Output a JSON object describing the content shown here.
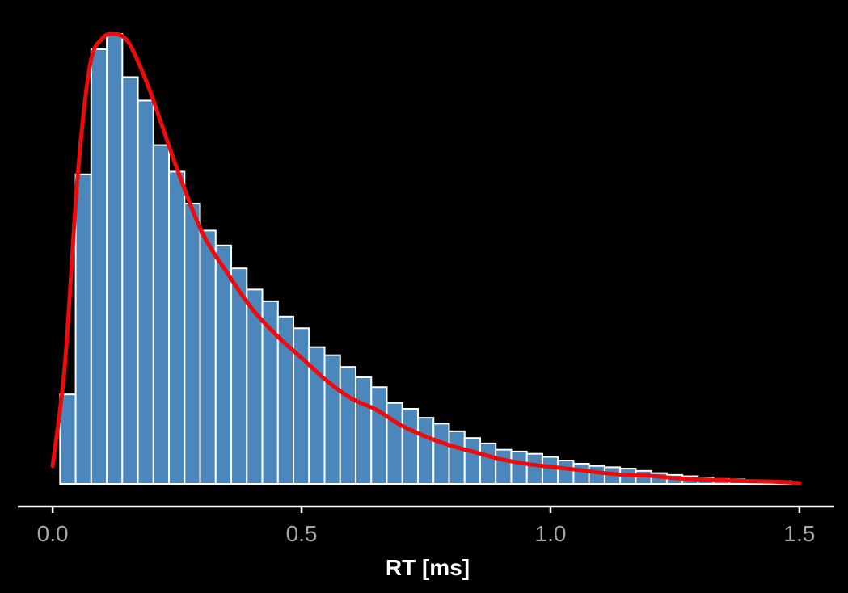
{
  "chart_data": {
    "type": "bar",
    "subtype": "histogram-with-density",
    "title": "",
    "xlabel": "RT [ms]",
    "ylabel": "",
    "xlim": [
      -0.07,
      1.57
    ],
    "ylim": [
      0,
      1.06
    ],
    "x_ticks": [
      0.0,
      0.5,
      1.0,
      1.5
    ],
    "x_tick_labels": [
      "0.0",
      "0.5",
      "1.0",
      "1.5"
    ],
    "y_axis_visible": false,
    "grid": false,
    "legend": "none",
    "bin_width": 0.03125,
    "bins_start": 0.015,
    "bar_color": "#4b87bb",
    "bar_edge_color": "#ffffff",
    "density_color": "#ee0b0b",
    "background_color": "#000000",
    "bars": [
      0.199,
      0.688,
      0.966,
      1.0,
      0.904,
      0.852,
      0.753,
      0.694,
      0.623,
      0.563,
      0.53,
      0.479,
      0.432,
      0.406,
      0.372,
      0.346,
      0.304,
      0.286,
      0.26,
      0.237,
      0.215,
      0.18,
      0.167,
      0.147,
      0.134,
      0.117,
      0.102,
      0.09,
      0.076,
      0.072,
      0.067,
      0.06,
      0.052,
      0.045,
      0.04,
      0.037,
      0.034,
      0.029,
      0.024,
      0.02,
      0.017,
      0.014,
      0.011,
      0.01,
      0.008,
      0.007,
      0.006
    ],
    "density": {
      "x": [
        0.0,
        0.025,
        0.05,
        0.075,
        0.1,
        0.125,
        0.15,
        0.175,
        0.2,
        0.25,
        0.3,
        0.35,
        0.4,
        0.45,
        0.5,
        0.55,
        0.6,
        0.65,
        0.7,
        0.75,
        0.8,
        0.85,
        0.9,
        0.95,
        1.0,
        1.05,
        1.1,
        1.15,
        1.2,
        1.25,
        1.3,
        1.35,
        1.4,
        1.45,
        1.5
      ],
      "y": [
        0.04,
        0.27,
        0.68,
        0.93,
        0.99,
        1.0,
        0.985,
        0.93,
        0.86,
        0.7,
        0.56,
        0.47,
        0.39,
        0.33,
        0.28,
        0.23,
        0.19,
        0.165,
        0.13,
        0.105,
        0.085,
        0.07,
        0.055,
        0.045,
        0.038,
        0.032,
        0.025,
        0.02,
        0.018,
        0.013,
        0.01,
        0.008,
        0.006,
        0.005,
        0.002
      ]
    }
  }
}
